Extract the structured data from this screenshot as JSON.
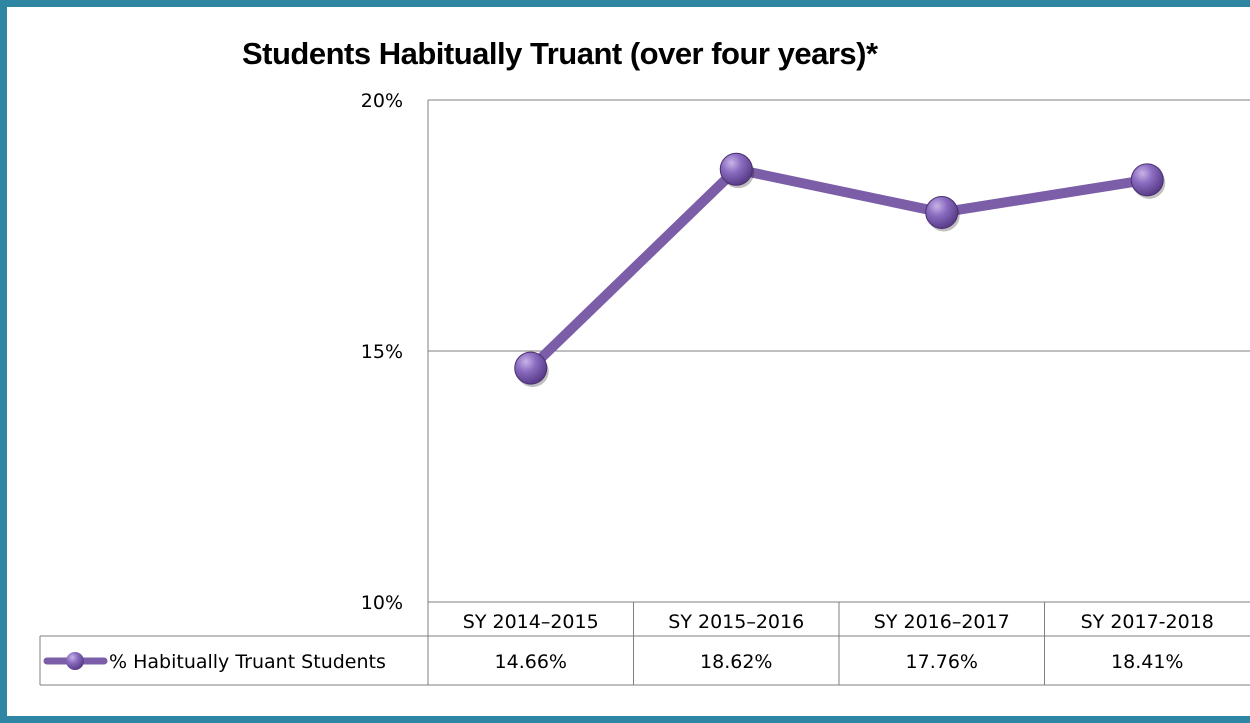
{
  "chart_data": {
    "type": "line",
    "title": "Students Habitually Truant (over four years)*",
    "categories": [
      "SY 2014–2015",
      "SY 2015–2016",
      "SY 2016–2017",
      "SY 2017-2018"
    ],
    "series": [
      {
        "name": "% Habitually Truant Students",
        "values": [
          14.66,
          18.62,
          17.76,
          18.41
        ],
        "labels": [
          "14.66%",
          "18.62%",
          "17.76%",
          "18.41%"
        ],
        "color": "#7b5ea7"
      }
    ],
    "yticks": [
      "20%",
      "15%",
      "10%"
    ],
    "ylim": [
      10,
      20
    ],
    "grid": true,
    "legend": "data-table"
  }
}
